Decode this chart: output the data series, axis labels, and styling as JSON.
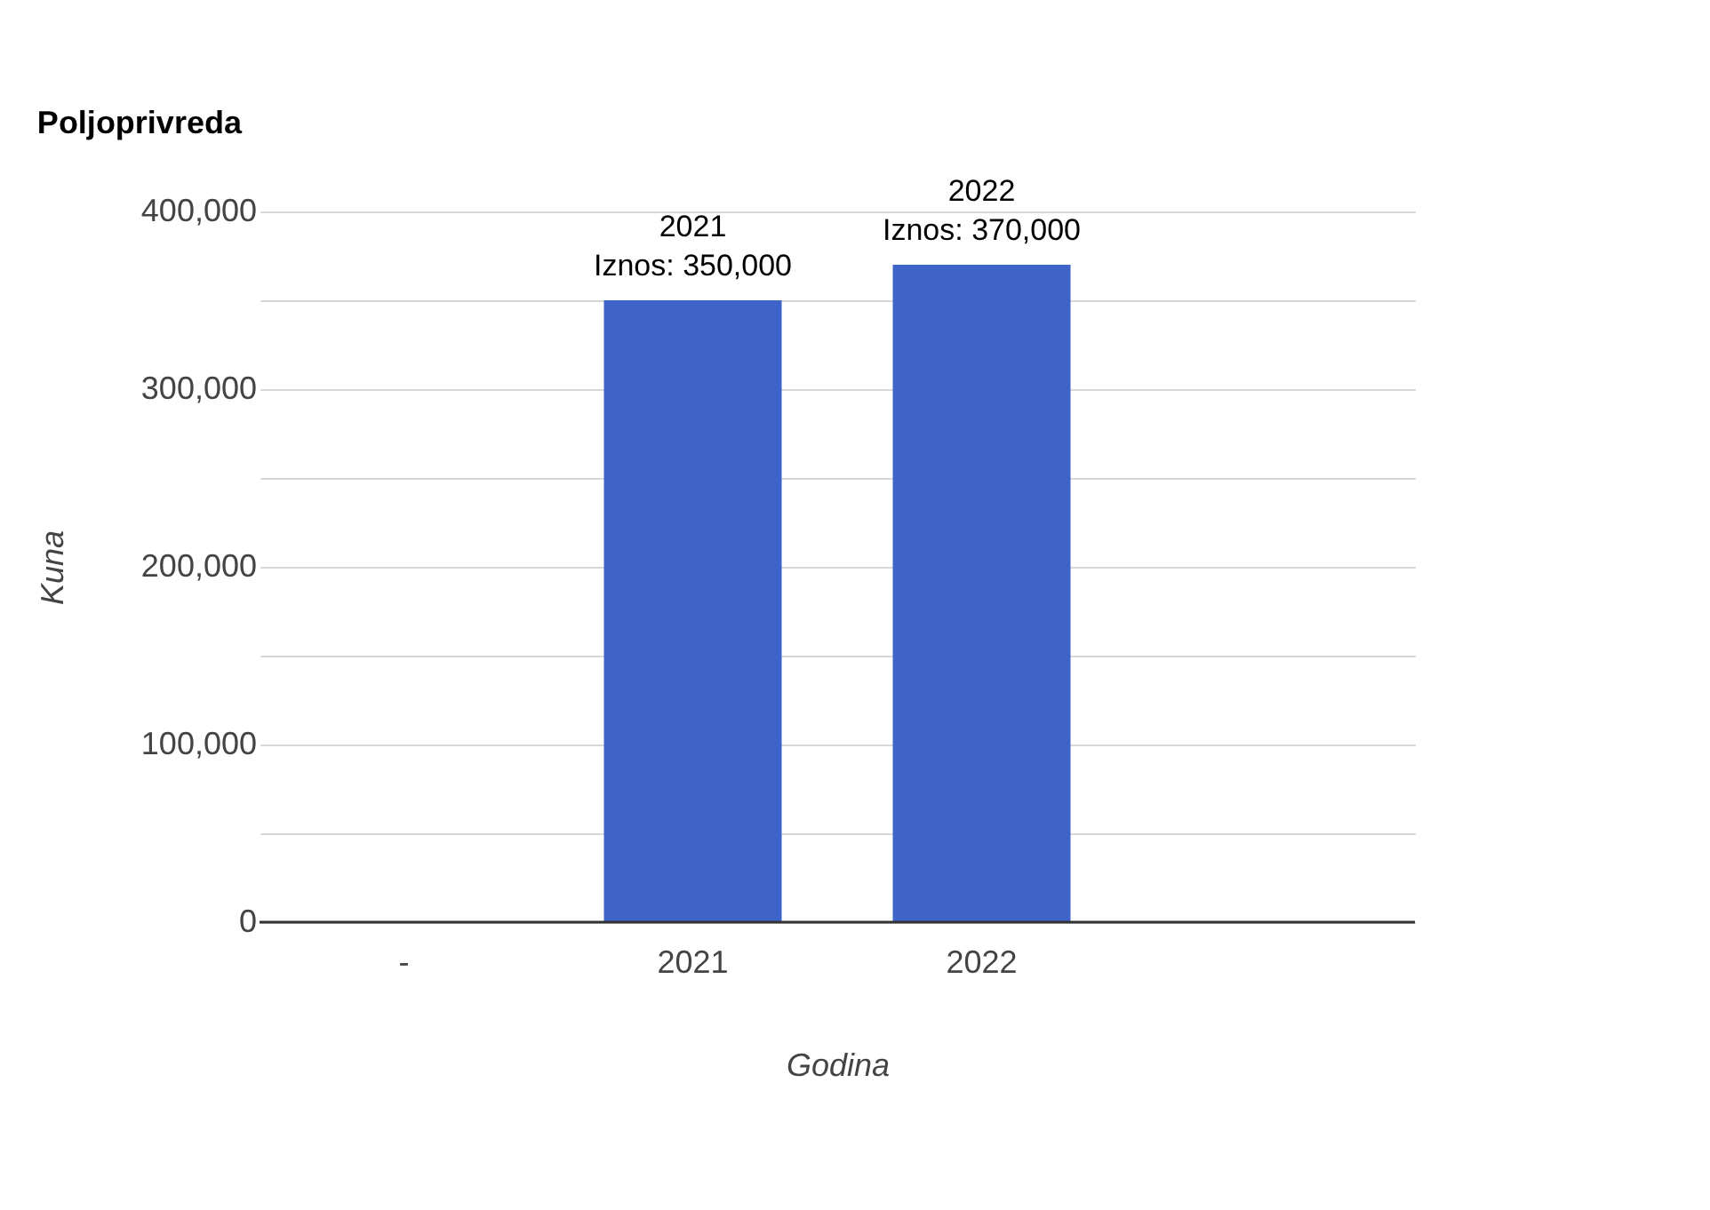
{
  "chart_data": {
    "type": "bar",
    "title": "Poljoprivreda",
    "xlabel": "Godina",
    "ylabel": "Kuna",
    "categories": [
      "-",
      "2021",
      "2022",
      null
    ],
    "series": [
      {
        "color": "#3e64c9",
        "values": [
          0,
          350000,
          370000,
          null
        ]
      }
    ],
    "ylim": [
      0,
      400000
    ],
    "yticks": [
      0,
      {
        "value": 50000,
        "label": null
      },
      {
        "value": 100000,
        "label": "100,000"
      },
      {
        "value": 150000,
        "label": null
      },
      {
        "value": 200000,
        "label": "200,000"
      },
      {
        "value": 250000,
        "label": null
      },
      {
        "value": 300000,
        "label": "300,000"
      },
      {
        "value": 350000,
        "label": null
      },
      {
        "value": 400000,
        "label": "400,000"
      }
    ],
    "grid": "y",
    "legend": false,
    "annotations": [
      {
        "text": "2021\nIznos: 350,000",
        "x": "2021",
        "y": 350000
      },
      {
        "text": "2022\nIznos: 370,000",
        "x": "2022",
        "y": 370000
      }
    ]
  }
}
